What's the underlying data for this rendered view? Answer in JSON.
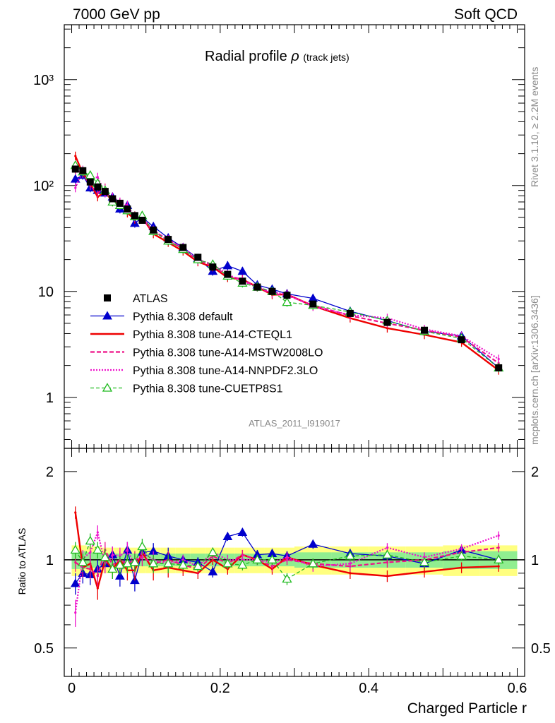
{
  "header": {
    "left": "7000 GeV pp",
    "right": "Soft QCD"
  },
  "main_title": {
    "text": "Radial profile",
    "symbol": "ρ",
    "suffix": "(track jets)"
  },
  "side_labels": {
    "rivet": "Rivet 3.1.10, ≥ 2.2M events",
    "mcplots": "mcplots.cern.ch [arXiv:1306.3436]"
  },
  "analysis_id": "ATLAS_2011_I919017",
  "ratio_ylabel": "Ratio to ATLAS",
  "x_axis_label": "Charged Particle r",
  "colors": {
    "atlas": "#000000",
    "default": "#0000cc",
    "cteql1": "#ee0000",
    "mstw": "#ee1188",
    "nnpdf": "#ee11cc",
    "cuetp8s1": "#22bb22",
    "band_yellow": "#ffff80",
    "band_green": "#90ee90"
  },
  "chart_data": [
    {
      "type": "line",
      "title": "Radial profile ρ (track jets)",
      "xlabel": "",
      "ylabel": "",
      "yscale": "log",
      "xlim": [
        -0.01,
        0.61
      ],
      "ylim": [
        0.33,
        3300
      ],
      "ytick_labels": [
        "1",
        "10",
        "10²",
        "10³"
      ],
      "legend": {
        "position": "middle-left",
        "entries": [
          "ATLAS",
          "Pythia 8.308 default",
          "Pythia 8.308 tune-A14-CTEQL1",
          "Pythia 8.308 tune-A14-MSTW2008LO",
          "Pythia 8.308 tune-A14-NNPDF2.3LO",
          "Pythia 8.308 tune-CUETP8S1"
        ]
      },
      "x": [
        0.005,
        0.015,
        0.025,
        0.035,
        0.045,
        0.055,
        0.065,
        0.075,
        0.085,
        0.095,
        0.11,
        0.13,
        0.15,
        0.17,
        0.19,
        0.21,
        0.23,
        0.25,
        0.27,
        0.29,
        0.325,
        0.375,
        0.425,
        0.475,
        0.525,
        0.575
      ],
      "series": [
        {
          "name": "ATLAS",
          "values": [
            143,
            138,
            108,
            97,
            88,
            75,
            68,
            60,
            52,
            47,
            38,
            31,
            26,
            21,
            17,
            14.5,
            12.5,
            11,
            10,
            9.2,
            7.6,
            6.2,
            5.1,
            4.3,
            3.5,
            1.9
          ]
        },
        {
          "name": "Pythia 8.308 default",
          "values": [
            115,
            125,
            95,
            90,
            85,
            78,
            60,
            65,
            44,
            50,
            41,
            32,
            26,
            20.5,
            15.5,
            17.5,
            15.5,
            11.5,
            10.5,
            9.5,
            8.6,
            6.5,
            5.3,
            4.2,
            3.8,
            1.9
          ]
        },
        {
          "name": "Pythia 8.308 tune-A14-CTEQL1",
          "values": [
            190,
            130,
            105,
            78,
            88,
            70,
            68,
            55,
            48,
            50,
            35,
            29,
            24,
            19,
            17,
            13.5,
            13,
            11,
            9.3,
            9.4,
            7.3,
            5.6,
            4.5,
            3.9,
            3.3,
            1.8
          ]
        },
        {
          "name": "Pythia 8.308 tune-A14-MSTW2008LO",
          "values": [
            140,
            130,
            100,
            85,
            95,
            72,
            68,
            58,
            52,
            48,
            37,
            31,
            25,
            19.5,
            17.5,
            14,
            13,
            11,
            9.5,
            9.2,
            7.4,
            5.9,
            5.0,
            4.3,
            3.7,
            2.1
          ]
        },
        {
          "name": "Pythia 8.308 tune-A14-NNPDF2.3LO",
          "values": [
            95,
            140,
            115,
            120,
            85,
            78,
            70,
            65,
            50,
            50,
            38,
            30,
            26,
            20,
            18,
            14.5,
            12.5,
            11,
            9.8,
            9.4,
            7.2,
            6.0,
            5.6,
            4.4,
            3.8,
            2.3
          ]
        },
        {
          "name": "Pythia 8.308 tune-CUETP8S1",
          "values": [
            155,
            135,
            125,
            105,
            90,
            70,
            65,
            58,
            51,
            52,
            37,
            30,
            25,
            20,
            18,
            14,
            12,
            11,
            10,
            7.9,
            7.4,
            6.4,
            5.3,
            4.2,
            3.6,
            1.9
          ]
        }
      ]
    },
    {
      "type": "line",
      "xlabel": "Charged Particle r",
      "ylabel": "Ratio to ATLAS",
      "yscale": "log",
      "xlim": [
        -0.01,
        0.61
      ],
      "ylim": [
        0.4,
        2.4
      ],
      "ytick_labels": [
        "0.5",
        "1",
        "2"
      ],
      "xtick_labels": [
        "0",
        "0.2",
        "0.4",
        "0.6"
      ],
      "x": [
        0.005,
        0.015,
        0.025,
        0.035,
        0.045,
        0.055,
        0.065,
        0.075,
        0.085,
        0.095,
        0.11,
        0.13,
        0.15,
        0.17,
        0.19,
        0.21,
        0.23,
        0.25,
        0.27,
        0.29,
        0.325,
        0.375,
        0.425,
        0.475,
        0.525,
        0.575
      ],
      "band_green": [
        0.07,
        0.07,
        0.06,
        0.06,
        0.05,
        0.05,
        0.05,
        0.05,
        0.05,
        0.05,
        0.05,
        0.05,
        0.05,
        0.05,
        0.05,
        0.05,
        0.05,
        0.05,
        0.05,
        0.05,
        0.06,
        0.06,
        0.06,
        0.06,
        0.07,
        0.07
      ],
      "band_yellow": [
        0.12,
        0.12,
        0.11,
        0.11,
        0.1,
        0.1,
        0.1,
        0.1,
        0.1,
        0.1,
        0.1,
        0.1,
        0.1,
        0.1,
        0.1,
        0.1,
        0.1,
        0.1,
        0.1,
        0.1,
        0.11,
        0.11,
        0.11,
        0.11,
        0.12,
        0.12
      ],
      "series": [
        {
          "name": "Pythia 8.308 default",
          "values": [
            0.83,
            0.9,
            0.89,
            0.93,
            0.97,
            1.04,
            0.88,
            1.08,
            0.85,
            1.06,
            1.07,
            1.03,
            1.0,
            0.98,
            0.91,
            1.2,
            1.24,
            1.04,
            1.05,
            1.03,
            1.13,
            1.05,
            1.03,
            0.97,
            1.08,
            1.0
          ]
        },
        {
          "name": "Pythia 8.308 tune-A14-CTEQL1",
          "values": [
            1.45,
            0.94,
            0.97,
            0.8,
            1.0,
            0.93,
            1.0,
            0.92,
            0.92,
            1.06,
            0.92,
            0.94,
            0.92,
            0.9,
            1.0,
            0.93,
            1.04,
            1.0,
            0.93,
            1.02,
            0.96,
            0.9,
            0.88,
            0.91,
            0.94,
            0.95
          ]
        },
        {
          "name": "Pythia 8.308 tune-A14-MSTW2008LO",
          "values": [
            0.98,
            0.94,
            0.93,
            0.88,
            1.08,
            0.96,
            1.0,
            0.97,
            1.0,
            1.02,
            0.97,
            1.0,
            0.96,
            0.93,
            1.03,
            0.97,
            1.04,
            1.0,
            0.95,
            1.0,
            0.97,
            0.95,
            0.98,
            1.0,
            1.06,
            1.1
          ]
        },
        {
          "name": "Pythia 8.308 tune-A14-NNPDF2.3LO",
          "values": [
            0.66,
            1.01,
            1.06,
            1.24,
            0.97,
            1.04,
            1.03,
            1.08,
            0.96,
            1.06,
            1.0,
            0.97,
            1.0,
            0.95,
            1.06,
            1.0,
            1.0,
            1.0,
            0.98,
            1.02,
            0.95,
            0.97,
            1.1,
            1.02,
            1.09,
            1.21
          ]
        },
        {
          "name": "Pythia 8.308 tune-CUETP8S1",
          "values": [
            1.08,
            0.98,
            1.16,
            1.08,
            1.02,
            0.93,
            0.96,
            0.97,
            0.98,
            1.11,
            0.97,
            0.97,
            0.96,
            0.95,
            1.06,
            0.97,
            0.96,
            1.0,
            1.0,
            0.86,
            0.97,
            1.03,
            1.04,
            0.98,
            1.03,
            1.0
          ]
        }
      ]
    }
  ]
}
